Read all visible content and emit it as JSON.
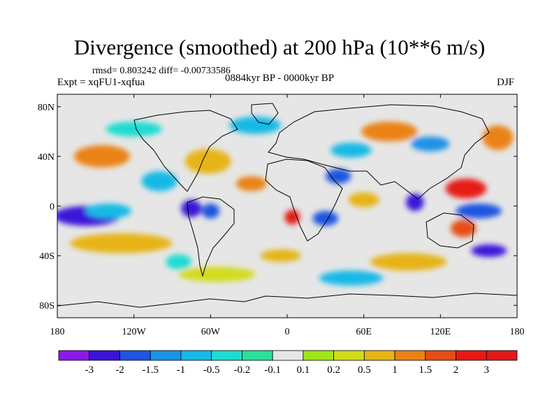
{
  "title": "Divergence (smoothed) at 200 hPa (10**6 m/s)",
  "stats": "rmsd= 0.803242  diff= -0.00733586",
  "experiment": "Expt = xqFU1-xqfua",
  "period": "0884kyr BP - 0000kyr BP",
  "season": "DJF",
  "axes": {
    "lon_labels": [
      "180",
      "120W",
      "60W",
      "0",
      "60E",
      "120E",
      "180"
    ],
    "lat_labels": [
      "80N",
      "40N",
      "0",
      "40S",
      "80S"
    ]
  },
  "colorbar": {
    "labels": [
      "-3",
      "-2",
      "-1.5",
      "-1",
      "-0.5",
      "-0.2",
      "-0.1",
      "0.1",
      "0.2",
      "0.5",
      "1",
      "1.5",
      "2",
      "3"
    ],
    "colors": [
      "#8a19e6",
      "#3a14d9",
      "#1f55e0",
      "#1a93e6",
      "#16b9e6",
      "#1cdcd2",
      "#2ae09a",
      "#e6e6e6",
      "#9ee61a",
      "#d2dc1a",
      "#e6b414",
      "#eb8214",
      "#e64d14",
      "#e61a14",
      "#e01a1a"
    ]
  },
  "map_blobs": [
    {
      "lon": -157,
      "lat": -8,
      "rx": 26,
      "ry": 8,
      "level": 1
    },
    {
      "lon": -140,
      "lat": -4,
      "rx": 18,
      "ry": 6,
      "level": 4
    },
    {
      "lon": -75,
      "lat": -2,
      "rx": 8,
      "ry": 7,
      "level": 1
    },
    {
      "lon": -60,
      "lat": -4,
      "rx": 7,
      "ry": 6,
      "level": 2
    },
    {
      "lon": -62,
      "lat": 36,
      "rx": 18,
      "ry": 10,
      "level": 10
    },
    {
      "lon": -145,
      "lat": 40,
      "rx": 22,
      "ry": 9,
      "level": 11
    },
    {
      "lon": 4,
      "lat": -9,
      "rx": 6,
      "ry": 6,
      "level": 13
    },
    {
      "lon": -130,
      "lat": -30,
      "rx": 40,
      "ry": 8,
      "level": 10
    },
    {
      "lon": -28,
      "lat": 18,
      "rx": 12,
      "ry": 6,
      "level": 11
    },
    {
      "lon": 30,
      "lat": -10,
      "rx": 10,
      "ry": 6,
      "level": 2
    },
    {
      "lon": 40,
      "lat": 24,
      "rx": 10,
      "ry": 6,
      "level": 2
    },
    {
      "lon": 60,
      "lat": 5,
      "rx": 12,
      "ry": 6,
      "level": 10
    },
    {
      "lon": 100,
      "lat": 3,
      "rx": 7,
      "ry": 7,
      "level": 1
    },
    {
      "lon": 140,
      "lat": 14,
      "rx": 16,
      "ry": 8,
      "level": 13
    },
    {
      "lon": 150,
      "lat": -4,
      "rx": 18,
      "ry": 6,
      "level": 2
    },
    {
      "lon": 138,
      "lat": -18,
      "rx": 10,
      "ry": 7,
      "level": 12
    },
    {
      "lon": 158,
      "lat": -36,
      "rx": 14,
      "ry": 5,
      "level": 1
    },
    {
      "lon": 95,
      "lat": -45,
      "rx": 30,
      "ry": 7,
      "level": 10
    },
    {
      "lon": -120,
      "lat": 62,
      "rx": 22,
      "ry": 6,
      "level": 5
    },
    {
      "lon": 80,
      "lat": 60,
      "rx": 22,
      "ry": 8,
      "level": 11
    },
    {
      "lon": -25,
      "lat": 65,
      "rx": 20,
      "ry": 7,
      "level": 4
    },
    {
      "lon": 50,
      "lat": 45,
      "rx": 16,
      "ry": 6,
      "level": 4
    },
    {
      "lon": -55,
      "lat": -55,
      "rx": 30,
      "ry": 6,
      "level": 9
    },
    {
      "lon": 50,
      "lat": -58,
      "rx": 25,
      "ry": 6,
      "level": 4
    },
    {
      "lon": 165,
      "lat": 55,
      "rx": 12,
      "ry": 10,
      "level": 11
    },
    {
      "lon": -100,
      "lat": 20,
      "rx": 14,
      "ry": 8,
      "level": 4
    },
    {
      "lon": -85,
      "lat": -45,
      "rx": 10,
      "ry": 6,
      "level": 5
    },
    {
      "lon": -5,
      "lat": -40,
      "rx": 16,
      "ry": 5,
      "level": 10
    },
    {
      "lon": 112,
      "lat": 50,
      "rx": 15,
      "ry": 6,
      "level": 3
    }
  ]
}
